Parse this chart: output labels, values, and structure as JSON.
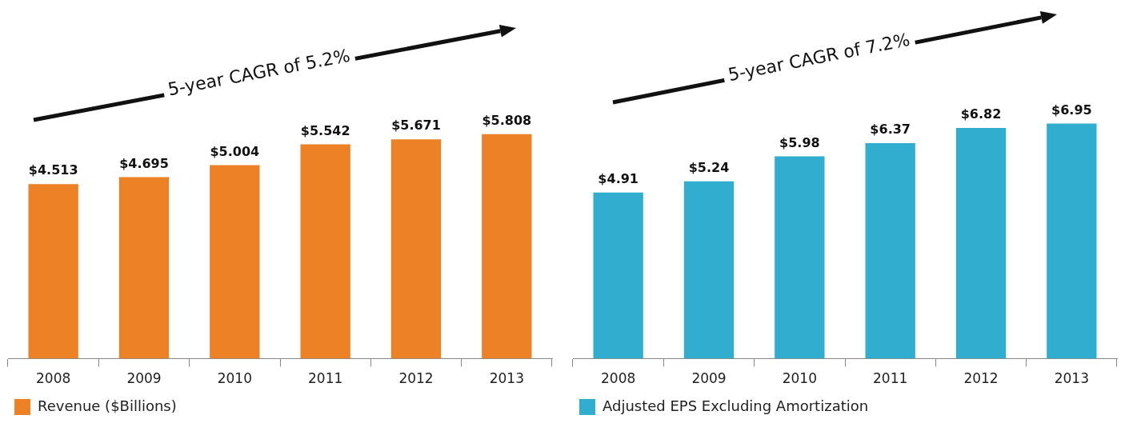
{
  "chart_data": [
    {
      "type": "bar",
      "categories": [
        "2008",
        "2009",
        "2010",
        "2011",
        "2012",
        "2013"
      ],
      "series": [
        {
          "name": "Revenue ($Billions)",
          "color": "#ec8126",
          "values": [
            4.513,
            4.695,
            5.004,
            5.542,
            5.671,
            5.808
          ],
          "value_labels": [
            "$4.513",
            "$4.695",
            "$5.004",
            "$5.542",
            "$5.671",
            "$5.808"
          ]
        }
      ],
      "annotations": [
        "5-year CAGR of 5.2%"
      ],
      "legend": "bottom left",
      "grid": false
    },
    {
      "type": "bar",
      "categories": [
        "2008",
        "2009",
        "2010",
        "2011",
        "2012",
        "2013"
      ],
      "series": [
        {
          "name": "Adjusted EPS Excluding Amortization",
          "color": "#31aecf",
          "values": [
            4.91,
            5.24,
            5.98,
            6.37,
            6.82,
            6.95
          ],
          "value_labels": [
            "$4.91",
            "$5.24",
            "$5.98",
            "$6.37",
            "$6.82",
            "$6.95"
          ]
        }
      ],
      "annotations": [
        "5-year CAGR of 7.2%"
      ],
      "legend": "bottom left",
      "grid": false
    }
  ]
}
